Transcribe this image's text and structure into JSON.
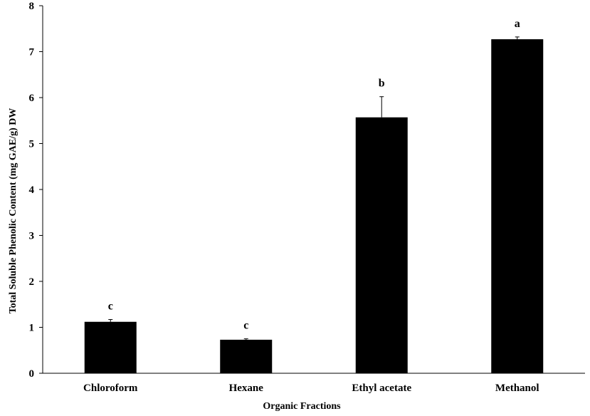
{
  "chart_data": {
    "type": "bar",
    "title": "",
    "xlabel": "Organic Fractions",
    "ylabel": "Total Soluble Phenolic Content (mg GAE/g) DW",
    "categories": [
      "Chloroform",
      "Hexane",
      "Ethyl acetate",
      "Methanol"
    ],
    "values": [
      1.12,
      0.73,
      5.57,
      7.27
    ],
    "errors": [
      0.05,
      0.02,
      0.45,
      0.05
    ],
    "significance": [
      "c",
      "c",
      "b",
      "a"
    ],
    "ylim": [
      0,
      8
    ],
    "yticks": [
      0,
      1,
      2,
      3,
      4,
      5,
      6,
      7,
      8
    ],
    "grid": false,
    "legend": "none",
    "bar_color": "#000000"
  }
}
